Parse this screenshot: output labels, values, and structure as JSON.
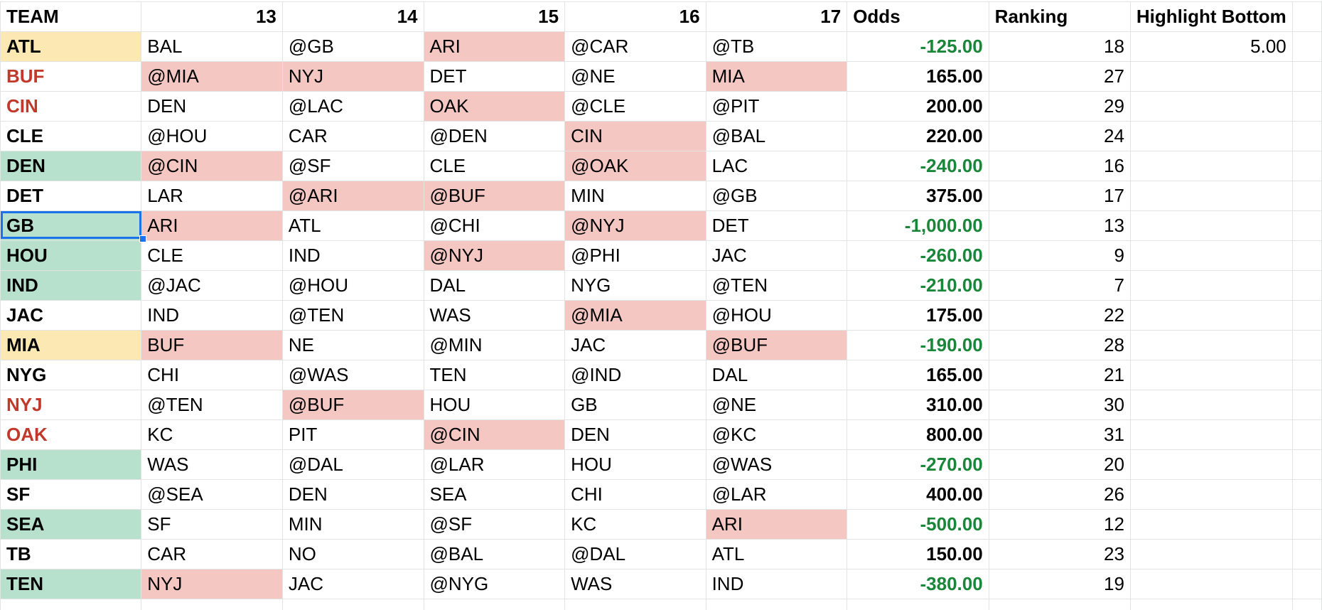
{
  "headers": [
    "TEAM",
    "13",
    "14",
    "15",
    "16",
    "17",
    "Odds",
    "Ranking",
    "Highlight Bottom",
    ""
  ],
  "rows": [
    {
      "team": "ATL",
      "t": "yellow",
      "g": [
        "BAL",
        "@GB",
        "ARI",
        "@CAR",
        "@TB"
      ],
      "h": [
        0,
        0,
        1,
        0,
        0
      ],
      "odds": "-125.00",
      "rank": "18",
      "hb": "5.00"
    },
    {
      "team": "BUF",
      "t": "red",
      "g": [
        "@MIA",
        "NYJ",
        "DET",
        "@NE",
        "MIA"
      ],
      "h": [
        1,
        1,
        0,
        0,
        1
      ],
      "odds": "165.00",
      "rank": "27",
      "hb": ""
    },
    {
      "team": "CIN",
      "t": "red",
      "g": [
        "DEN",
        "@LAC",
        "OAK",
        "@CLE",
        "@PIT"
      ],
      "h": [
        0,
        0,
        1,
        0,
        0
      ],
      "odds": "200.00",
      "rank": "29",
      "hb": ""
    },
    {
      "team": "CLE",
      "t": "",
      "g": [
        "@HOU",
        "CAR",
        "@DEN",
        "CIN",
        "@BAL"
      ],
      "h": [
        0,
        0,
        0,
        1,
        0
      ],
      "odds": "220.00",
      "rank": "24",
      "hb": ""
    },
    {
      "team": "DEN",
      "t": "green",
      "g": [
        "@CIN",
        "@SF",
        "CLE",
        "@OAK",
        "LAC"
      ],
      "h": [
        1,
        0,
        0,
        1,
        0
      ],
      "odds": "-240.00",
      "rank": "16",
      "hb": ""
    },
    {
      "team": "DET",
      "t": "",
      "g": [
        "LAR",
        "@ARI",
        "@BUF",
        "MIN",
        "@GB"
      ],
      "h": [
        0,
        1,
        1,
        0,
        0
      ],
      "odds": "375.00",
      "rank": "17",
      "hb": ""
    },
    {
      "team": "GB",
      "t": "green",
      "g": [
        "ARI",
        "ATL",
        "@CHI",
        "@NYJ",
        "DET"
      ],
      "h": [
        1,
        0,
        0,
        1,
        0
      ],
      "odds": "-1,000.00",
      "rank": "13",
      "hb": ""
    },
    {
      "team": "HOU",
      "t": "green",
      "g": [
        "CLE",
        "IND",
        "@NYJ",
        "@PHI",
        "JAC"
      ],
      "h": [
        0,
        0,
        1,
        0,
        0
      ],
      "odds": "-260.00",
      "rank": "9",
      "hb": ""
    },
    {
      "team": "IND",
      "t": "green",
      "g": [
        "@JAC",
        "@HOU",
        "DAL",
        "NYG",
        "@TEN"
      ],
      "h": [
        0,
        0,
        0,
        0,
        0
      ],
      "odds": "-210.00",
      "rank": "7",
      "hb": ""
    },
    {
      "team": "JAC",
      "t": "",
      "g": [
        "IND",
        "@TEN",
        "WAS",
        "@MIA",
        "@HOU"
      ],
      "h": [
        0,
        0,
        0,
        1,
        0
      ],
      "odds": "175.00",
      "rank": "22",
      "hb": ""
    },
    {
      "team": "MIA",
      "t": "yellow",
      "g": [
        "BUF",
        "NE",
        "@MIN",
        "JAC",
        "@BUF"
      ],
      "h": [
        1,
        0,
        0,
        0,
        1
      ],
      "odds": "-190.00",
      "rank": "28",
      "hb": ""
    },
    {
      "team": "NYG",
      "t": "",
      "g": [
        "CHI",
        "@WAS",
        "TEN",
        "@IND",
        "DAL"
      ],
      "h": [
        0,
        0,
        0,
        0,
        0
      ],
      "odds": "165.00",
      "rank": "21",
      "hb": ""
    },
    {
      "team": "NYJ",
      "t": "red",
      "g": [
        "@TEN",
        "@BUF",
        "HOU",
        "GB",
        "@NE"
      ],
      "h": [
        0,
        1,
        0,
        0,
        0
      ],
      "odds": "310.00",
      "rank": "30",
      "hb": ""
    },
    {
      "team": "OAK",
      "t": "red",
      "g": [
        "KC",
        "PIT",
        "@CIN",
        "DEN",
        "@KC"
      ],
      "h": [
        0,
        0,
        1,
        0,
        0
      ],
      "odds": "800.00",
      "rank": "31",
      "hb": ""
    },
    {
      "team": "PHI",
      "t": "green",
      "g": [
        "WAS",
        "@DAL",
        "@LAR",
        "HOU",
        "@WAS"
      ],
      "h": [
        0,
        0,
        0,
        0,
        0
      ],
      "odds": "-270.00",
      "rank": "20",
      "hb": ""
    },
    {
      "team": "SF",
      "t": "",
      "g": [
        "@SEA",
        "DEN",
        "SEA",
        "CHI",
        "@LAR"
      ],
      "h": [
        0,
        0,
        0,
        0,
        0
      ],
      "odds": "400.00",
      "rank": "26",
      "hb": ""
    },
    {
      "team": "SEA",
      "t": "green",
      "g": [
        "SF",
        "MIN",
        "@SF",
        "KC",
        "ARI"
      ],
      "h": [
        0,
        0,
        0,
        0,
        1
      ],
      "odds": "-500.00",
      "rank": "12",
      "hb": ""
    },
    {
      "team": "TB",
      "t": "",
      "g": [
        "CAR",
        "NO",
        "@BAL",
        "@DAL",
        "ATL"
      ],
      "h": [
        0,
        0,
        0,
        0,
        0
      ],
      "odds": "150.00",
      "rank": "23",
      "hb": ""
    },
    {
      "team": "TEN",
      "t": "green",
      "g": [
        "NYJ",
        "JAC",
        "@NYG",
        "WAS",
        "IND"
      ],
      "h": [
        1,
        0,
        0,
        0,
        0
      ],
      "odds": "-380.00",
      "rank": "19",
      "hb": ""
    }
  ],
  "selected_cell": "GB"
}
